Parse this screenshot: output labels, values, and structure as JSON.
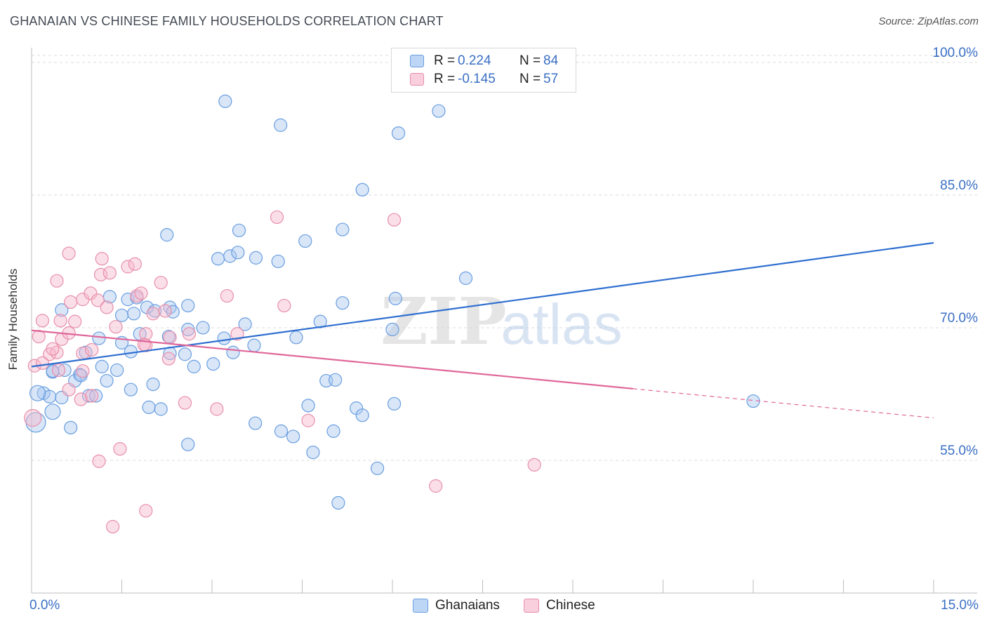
{
  "title": "GHANAIAN VS CHINESE FAMILY HOUSEHOLDS CORRELATION CHART",
  "source": "Source: ZipAtlas.com",
  "watermark": {
    "zip": "ZIP",
    "atlas": "atlas"
  },
  "legend": {
    "rows": [
      {
        "r_label": "R =",
        "r_value": "0.224",
        "n_label": "N =",
        "n_value": "84",
        "color": "#a9c8ef"
      },
      {
        "r_label": "R =",
        "r_value": "-0.145",
        "n_label": "N =",
        "n_value": "57",
        "color": "#f6b8cc"
      }
    ]
  },
  "bottom_legend": [
    {
      "label": "Ghanaians",
      "color": "#a9c8ef"
    },
    {
      "label": "Chinese",
      "color": "#f6b8cc"
    }
  ],
  "x_axis": {
    "min_label": "0.0%",
    "max_label": "15.0%"
  },
  "chart_data": {
    "type": "scatter",
    "xlabel": "",
    "ylabel": "Family Households",
    "xlim": [
      0,
      15
    ],
    "ylim": [
      40,
      101.5
    ],
    "y_ticks": [
      {
        "value": 55,
        "label": "55.0%"
      },
      {
        "value": 70,
        "label": "70.0%"
      },
      {
        "value": 85,
        "label": "85.0%"
      },
      {
        "value": 100,
        "label": "100.0%"
      }
    ],
    "grid": "horizontal dashed",
    "legend_position": "top-center",
    "series": [
      {
        "name": "Ghanaians",
        "color": "#6a9ee0",
        "fill": "#a9c8ef",
        "trend": {
          "x": [
            0,
            15
          ],
          "y": [
            65.6,
            79.6
          ],
          "style": "solid",
          "color": "#2f6fd0"
        },
        "points": [
          [
            3.22,
            95.6
          ],
          [
            4.14,
            92.9
          ],
          [
            6.77,
            94.5
          ],
          [
            6.1,
            92.0
          ],
          [
            5.5,
            85.6
          ],
          [
            2.25,
            80.5
          ],
          [
            3.45,
            81.0
          ],
          [
            5.17,
            81.1
          ],
          [
            4.55,
            79.8
          ],
          [
            3.1,
            77.8
          ],
          [
            3.3,
            78.1
          ],
          [
            3.43,
            78.5
          ],
          [
            3.73,
            77.9
          ],
          [
            4.1,
            77.5
          ],
          [
            7.22,
            75.6
          ],
          [
            0.5,
            72.0
          ],
          [
            1.3,
            73.5
          ],
          [
            1.6,
            73.2
          ],
          [
            1.75,
            73.4
          ],
          [
            1.92,
            72.3
          ],
          [
            2.05,
            71.9
          ],
          [
            2.3,
            72.3
          ],
          [
            2.6,
            72.5
          ],
          [
            2.85,
            70.0
          ],
          [
            3.55,
            70.4
          ],
          [
            3.7,
            68.0
          ],
          [
            4.8,
            70.7
          ],
          [
            5.17,
            72.8
          ],
          [
            6.05,
            73.3
          ],
          [
            6.0,
            69.8
          ],
          [
            4.4,
            68.9
          ],
          [
            3.35,
            67.2
          ],
          [
            1.12,
            68.8
          ],
          [
            1.5,
            68.3
          ],
          [
            1.65,
            67.3
          ],
          [
            1.8,
            69.3
          ],
          [
            2.3,
            67.1
          ],
          [
            2.55,
            67.0
          ],
          [
            2.7,
            65.6
          ],
          [
            3.02,
            65.9
          ],
          [
            2.6,
            69.8
          ],
          [
            1.7,
            71.6
          ],
          [
            1.5,
            71.4
          ],
          [
            2.35,
            71.8
          ],
          [
            0.35,
            65.0
          ],
          [
            0.55,
            65.2
          ],
          [
            0.8,
            64.7
          ],
          [
            0.72,
            64.0
          ],
          [
            1.17,
            65.6
          ],
          [
            1.42,
            65.2
          ],
          [
            1.25,
            64.0
          ],
          [
            1.65,
            63.0
          ],
          [
            2.02,
            63.6
          ],
          [
            0.2,
            62.6
          ],
          [
            0.3,
            62.2
          ],
          [
            0.1,
            62.6
          ],
          [
            0.5,
            62.1
          ],
          [
            0.95,
            62.3
          ],
          [
            1.07,
            62.3
          ],
          [
            0.35,
            60.5
          ],
          [
            0.07,
            59.3
          ],
          [
            0.65,
            58.7
          ],
          [
            1.95,
            61.0
          ],
          [
            2.15,
            60.8
          ],
          [
            2.6,
            56.8
          ],
          [
            3.72,
            59.2
          ],
          [
            4.15,
            58.3
          ],
          [
            4.35,
            57.7
          ],
          [
            4.6,
            61.2
          ],
          [
            4.68,
            55.9
          ],
          [
            4.9,
            64.0
          ],
          [
            5.05,
            64.1
          ],
          [
            5.02,
            58.3
          ],
          [
            5.4,
            60.9
          ],
          [
            5.5,
            60.1
          ],
          [
            6.03,
            61.4
          ],
          [
            5.75,
            54.1
          ],
          [
            5.1,
            50.2
          ],
          [
            12.0,
            61.7
          ],
          [
            0.35,
            65.1
          ],
          [
            0.82,
            64.6
          ],
          [
            2.28,
            69.0
          ],
          [
            3.2,
            68.8
          ],
          [
            0.9,
            67.2
          ]
        ],
        "sizes": {
          "default": 9,
          "large": [
            [
              0.07,
              59.3,
              14
            ],
            [
              0.1,
              62.6,
              11
            ],
            [
              0.35,
              60.5,
              11
            ]
          ]
        }
      },
      {
        "name": "Chinese",
        "color": "#e88fab",
        "fill": "#f6b8cc",
        "trend": {
          "x": [
            0,
            10.0
          ],
          "y": [
            69.7,
            63.1
          ],
          "x_dash": [
            10.0,
            15
          ],
          "y_dash": [
            63.1,
            59.8
          ],
          "style": "solid-then-dashed",
          "color": "#e0679a"
        },
        "points": [
          [
            4.08,
            82.5
          ],
          [
            6.03,
            82.2
          ],
          [
            0.62,
            78.4
          ],
          [
            1.17,
            77.8
          ],
          [
            1.15,
            76.0
          ],
          [
            1.3,
            76.2
          ],
          [
            1.6,
            76.9
          ],
          [
            1.72,
            77.2
          ],
          [
            2.15,
            75.1
          ],
          [
            0.42,
            75.3
          ],
          [
            0.65,
            72.9
          ],
          [
            0.85,
            73.2
          ],
          [
            0.98,
            73.9
          ],
          [
            1.1,
            73.1
          ],
          [
            1.75,
            73.6
          ],
          [
            1.82,
            73.9
          ],
          [
            1.25,
            72.3
          ],
          [
            3.25,
            73.6
          ],
          [
            4.2,
            72.5
          ],
          [
            2.02,
            71.6
          ],
          [
            2.22,
            71.9
          ],
          [
            0.18,
            70.8
          ],
          [
            0.48,
            70.8
          ],
          [
            0.72,
            70.7
          ],
          [
            1.4,
            70.1
          ],
          [
            1.9,
            69.3
          ],
          [
            2.3,
            68.9
          ],
          [
            2.62,
            69.3
          ],
          [
            3.42,
            69.3
          ],
          [
            0.12,
            69.0
          ],
          [
            0.3,
            67.0
          ],
          [
            0.42,
            67.2
          ],
          [
            0.35,
            67.6
          ],
          [
            0.5,
            68.7
          ],
          [
            0.85,
            67.1
          ],
          [
            1.0,
            67.5
          ],
          [
            0.62,
            69.4
          ],
          [
            0.05,
            65.7
          ],
          [
            0.18,
            66.0
          ],
          [
            0.45,
            65.2
          ],
          [
            0.85,
            65.1
          ],
          [
            0.62,
            63.0
          ],
          [
            0.82,
            61.9
          ],
          [
            1.0,
            62.3
          ],
          [
            1.9,
            68.0
          ],
          [
            2.28,
            66.5
          ],
          [
            2.55,
            61.5
          ],
          [
            3.08,
            60.8
          ],
          [
            4.6,
            59.5
          ],
          [
            0.02,
            59.8
          ],
          [
            1.47,
            56.3
          ],
          [
            1.12,
            54.9
          ],
          [
            1.9,
            49.3
          ],
          [
            1.35,
            47.5
          ],
          [
            6.72,
            52.1
          ],
          [
            8.36,
            54.5
          ],
          [
            1.87,
            68.1
          ]
        ],
        "sizes": {
          "default": 9,
          "large": [
            [
              0.02,
              59.8,
              12
            ]
          ]
        }
      }
    ]
  }
}
